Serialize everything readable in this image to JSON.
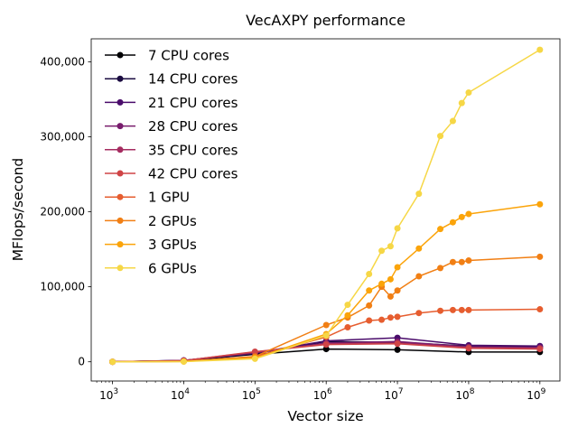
{
  "chart_data": {
    "type": "line",
    "title": "VecAXPY performance",
    "xlabel": "Vector size",
    "ylabel": "MFlops/second",
    "xscale": "log",
    "xlim": [
      1000.0,
      1000000000.0
    ],
    "ylim": [
      0,
      420000
    ],
    "xticks": [
      {
        "value": 1000,
        "base": "10",
        "exp": "3"
      },
      {
        "value": 10000,
        "base": "10",
        "exp": "4"
      },
      {
        "value": 100000,
        "base": "10",
        "exp": "5"
      },
      {
        "value": 1000000,
        "base": "10",
        "exp": "6"
      },
      {
        "value": 10000000,
        "base": "10",
        "exp": "7"
      },
      {
        "value": 100000000,
        "base": "10",
        "exp": "8"
      },
      {
        "value": 1000000000,
        "base": "10",
        "exp": "9"
      }
    ],
    "yticks": [
      {
        "value": 0,
        "label": "0"
      },
      {
        "value": 100000,
        "label": "100,000"
      },
      {
        "value": 200000,
        "label": "200,000"
      },
      {
        "value": 300000,
        "label": "300,000"
      },
      {
        "value": 400000,
        "label": "400,000"
      }
    ],
    "grid": false,
    "legend_position": "top-left",
    "series": [
      {
        "name": "7 CPU cores",
        "color": "#000004",
        "points": [
          [
            1000,
            0
          ],
          [
            10000,
            1500
          ],
          [
            100000,
            10000
          ],
          [
            1000000,
            17000
          ],
          [
            10000000,
            16000
          ],
          [
            100000000,
            13000
          ],
          [
            1000000000,
            13000
          ]
        ]
      },
      {
        "name": "14 CPU cores",
        "color": "#1b0c41",
        "points": [
          [
            1000,
            0
          ],
          [
            10000,
            1800
          ],
          [
            100000,
            11000
          ],
          [
            1000000,
            27000
          ],
          [
            10000000,
            26000
          ],
          [
            100000000,
            21000
          ],
          [
            1000000000,
            20000
          ]
        ]
      },
      {
        "name": "21 CPU cores",
        "color": "#4a0c6b",
        "points": [
          [
            1000,
            0
          ],
          [
            10000,
            1900
          ],
          [
            100000,
            11500
          ],
          [
            1000000,
            28000
          ],
          [
            10000000,
            32000
          ],
          [
            100000000,
            22000
          ],
          [
            1000000000,
            21000
          ]
        ]
      },
      {
        "name": "28 CPU cores",
        "color": "#781c6d",
        "points": [
          [
            1000,
            0
          ],
          [
            10000,
            1700
          ],
          [
            100000,
            12000
          ],
          [
            1000000,
            25000
          ],
          [
            10000000,
            27000
          ],
          [
            100000000,
            20000
          ],
          [
            1000000000,
            19000
          ]
        ]
      },
      {
        "name": "35 CPU cores",
        "color": "#a52c60",
        "points": [
          [
            1000,
            0
          ],
          [
            10000,
            1600
          ],
          [
            100000,
            13000
          ],
          [
            1000000,
            24000
          ],
          [
            10000000,
            25000
          ],
          [
            100000000,
            19000
          ],
          [
            1000000000,
            18000
          ]
        ]
      },
      {
        "name": "42 CPU cores",
        "color": "#cf4446",
        "points": [
          [
            1000,
            0
          ],
          [
            10000,
            1500
          ],
          [
            100000,
            13500
          ],
          [
            1000000,
            23000
          ],
          [
            10000000,
            24000
          ],
          [
            100000000,
            18000
          ],
          [
            1000000000,
            17000
          ]
        ]
      },
      {
        "name": "1 GPU",
        "color": "#e65d2f",
        "points": [
          [
            1000,
            0
          ],
          [
            10000,
            500
          ],
          [
            100000,
            7000
          ],
          [
            1000000,
            33000
          ],
          [
            2000000,
            46000
          ],
          [
            4000000,
            55000
          ],
          [
            6000000,
            56000
          ],
          [
            8000000,
            59000
          ],
          [
            10000000,
            60000
          ],
          [
            20000000,
            65000
          ],
          [
            40000000,
            68000
          ],
          [
            60000000,
            69000
          ],
          [
            80000000,
            69000
          ],
          [
            100000000,
            69000
          ],
          [
            1000000000,
            70000
          ]
        ]
      },
      {
        "name": "2 GPUs",
        "color": "#f17f14",
        "points": [
          [
            1000,
            0
          ],
          [
            10000,
            500
          ],
          [
            100000,
            7000
          ],
          [
            1000000,
            49000
          ],
          [
            2000000,
            59000
          ],
          [
            4000000,
            75000
          ],
          [
            6000000,
            100000
          ],
          [
            8000000,
            87000
          ],
          [
            10000000,
            95000
          ],
          [
            20000000,
            114000
          ],
          [
            40000000,
            125000
          ],
          [
            60000000,
            133000
          ],
          [
            80000000,
            133000
          ],
          [
            100000000,
            135000
          ],
          [
            1000000000,
            140000
          ]
        ]
      },
      {
        "name": "3 GPUs",
        "color": "#fba40a",
        "points": [
          [
            1000,
            0
          ],
          [
            10000,
            400
          ],
          [
            100000,
            5000
          ],
          [
            1000000,
            37000
          ],
          [
            2000000,
            62000
          ],
          [
            4000000,
            95000
          ],
          [
            6000000,
            104000
          ],
          [
            8000000,
            110000
          ],
          [
            10000000,
            126000
          ],
          [
            20000000,
            151000
          ],
          [
            40000000,
            177000
          ],
          [
            60000000,
            186000
          ],
          [
            80000000,
            193000
          ],
          [
            100000000,
            197000
          ],
          [
            1000000000,
            210000
          ]
        ]
      },
      {
        "name": "6 GPUs",
        "color": "#f6d746",
        "points": [
          [
            1000,
            0
          ],
          [
            10000,
            300
          ],
          [
            100000,
            4000
          ],
          [
            1000000,
            35000
          ],
          [
            2000000,
            76000
          ],
          [
            4000000,
            117000
          ],
          [
            6000000,
            148000
          ],
          [
            8000000,
            154000
          ],
          [
            10000000,
            178000
          ],
          [
            20000000,
            224000
          ],
          [
            40000000,
            301000
          ],
          [
            60000000,
            321000
          ],
          [
            80000000,
            345000
          ],
          [
            100000000,
            359000
          ],
          [
            1000000000,
            416000
          ]
        ]
      }
    ]
  }
}
